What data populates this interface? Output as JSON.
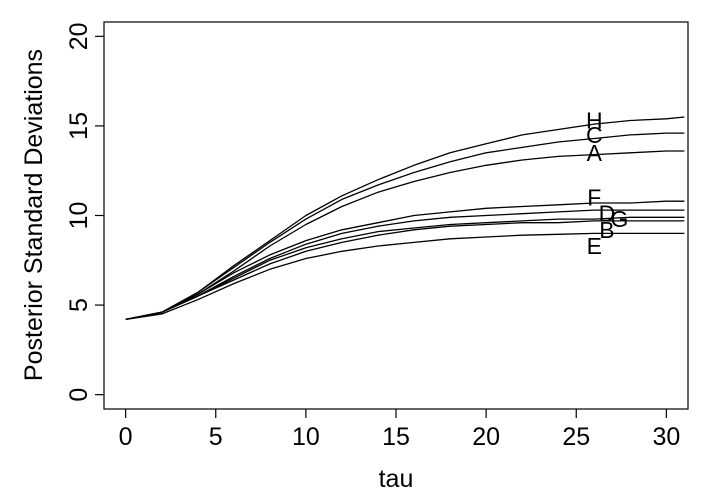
{
  "chart_data": {
    "type": "line",
    "title": "",
    "xlabel": "tau",
    "ylabel": "Posterior Standard Deviations",
    "xlim": [
      -1.2,
      31.2
    ],
    "ylim": [
      -0.8,
      20.8
    ],
    "xticks": [
      0,
      5,
      10,
      15,
      20,
      25,
      30
    ],
    "yticks": [
      0,
      5,
      10,
      15,
      20
    ],
    "grid": false,
    "legend": "none",
    "line_color": "#000000",
    "x": [
      0,
      2,
      4,
      6,
      8,
      10,
      12,
      14,
      16,
      18,
      20,
      22,
      24,
      26,
      28,
      30,
      31
    ],
    "series": [
      {
        "name": "H",
        "label_pos": [
          26.0,
          15.3
        ],
        "values": [
          4.2,
          4.6,
          5.7,
          7.2,
          8.6,
          10.0,
          11.1,
          12.0,
          12.8,
          13.5,
          14.0,
          14.5,
          14.8,
          15.1,
          15.3,
          15.4,
          15.5
        ]
      },
      {
        "name": "C",
        "label_pos": [
          26.0,
          14.5
        ],
        "values": [
          4.2,
          4.6,
          5.7,
          7.1,
          8.5,
          9.8,
          10.9,
          11.7,
          12.4,
          13.0,
          13.5,
          13.8,
          14.1,
          14.3,
          14.5,
          14.6,
          14.6
        ]
      },
      {
        "name": "A",
        "label_pos": [
          26.0,
          13.5
        ],
        "values": [
          4.2,
          4.6,
          5.6,
          6.9,
          8.3,
          9.5,
          10.5,
          11.3,
          11.9,
          12.4,
          12.8,
          13.1,
          13.3,
          13.4,
          13.5,
          13.6,
          13.6
        ]
      },
      {
        "name": "F",
        "label_pos": [
          26.0,
          11.0
        ],
        "values": [
          4.2,
          4.6,
          5.6,
          6.8,
          7.8,
          8.6,
          9.2,
          9.6,
          10.0,
          10.2,
          10.4,
          10.5,
          10.6,
          10.7,
          10.7,
          10.8,
          10.8
        ]
      },
      {
        "name": "D",
        "label_pos": [
          26.7,
          10.1
        ],
        "values": [
          4.2,
          4.6,
          5.5,
          6.6,
          7.6,
          8.4,
          9.0,
          9.4,
          9.7,
          9.9,
          10.0,
          10.1,
          10.2,
          10.3,
          10.3,
          10.3,
          10.3
        ]
      },
      {
        "name": "G",
        "label_pos": [
          27.4,
          9.8
        ],
        "values": [
          4.2,
          4.6,
          5.5,
          6.5,
          7.5,
          8.2,
          8.7,
          9.1,
          9.3,
          9.5,
          9.6,
          9.7,
          9.8,
          9.8,
          9.9,
          9.9,
          9.9
        ]
      },
      {
        "name": "B",
        "label_pos": [
          26.7,
          9.2
        ],
        "values": [
          4.2,
          4.6,
          5.5,
          6.4,
          7.3,
          8.0,
          8.5,
          8.9,
          9.2,
          9.4,
          9.5,
          9.6,
          9.6,
          9.7,
          9.7,
          9.7,
          9.7
        ]
      },
      {
        "name": "E",
        "label_pos": [
          26.0,
          8.3
        ],
        "values": [
          4.2,
          4.5,
          5.3,
          6.2,
          7.0,
          7.6,
          8.0,
          8.3,
          8.5,
          8.7,
          8.8,
          8.9,
          8.95,
          9.0,
          9.0,
          9.0,
          9.0
        ]
      }
    ]
  }
}
